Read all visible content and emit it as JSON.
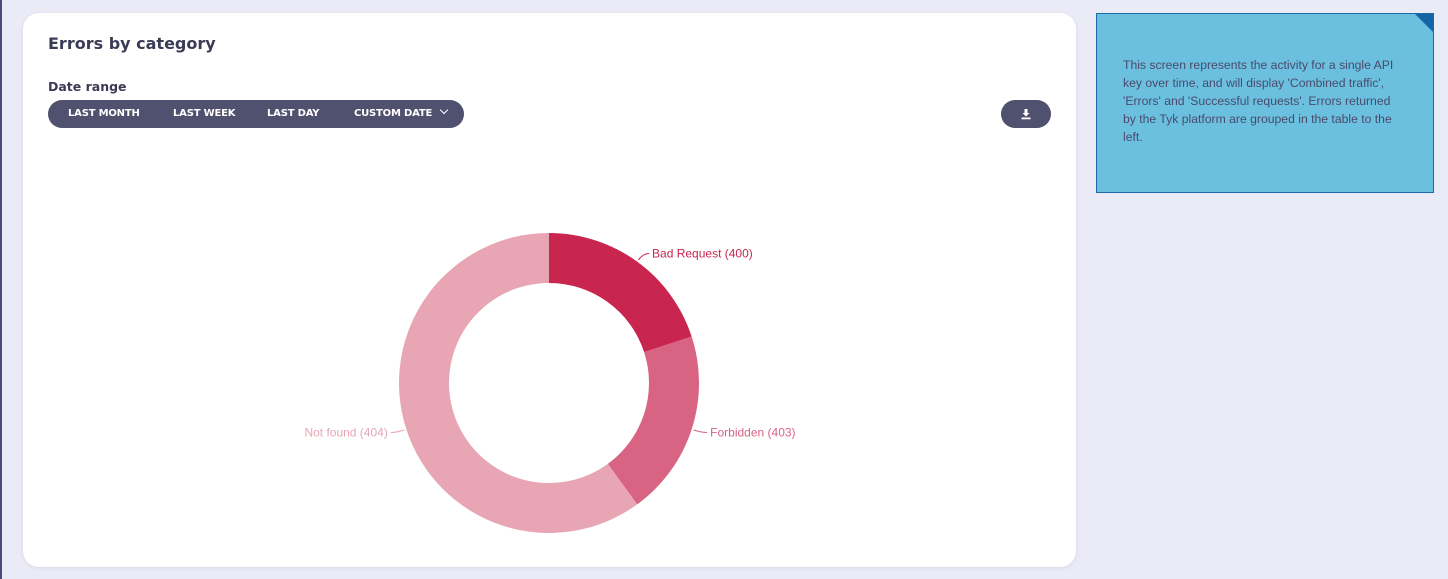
{
  "card": {
    "title": "Errors by category",
    "date_range_label": "Date range",
    "range_buttons": [
      "LAST MONTH",
      "LAST WEEK",
      "LAST DAY",
      "CUSTOM DATE"
    ],
    "download_icon": "download-icon"
  },
  "note": {
    "text": "This screen represents the activity for a single API key over time, and will display 'Combined traffic', 'Errors' and 'Successful requests'. Errors returned by the Tyk platform are grouped in the table to the left."
  },
  "chart_data": {
    "type": "pie",
    "donut": true,
    "categories": [
      "Bad Request (400)",
      "Forbidden (403)",
      "Not found (404)"
    ],
    "values": [
      20,
      20,
      60
    ],
    "unit": "percent share (estimated from slice angles)",
    "colors": [
      "#c8254f",
      "#d96383",
      "#e8a5b4"
    ]
  }
}
